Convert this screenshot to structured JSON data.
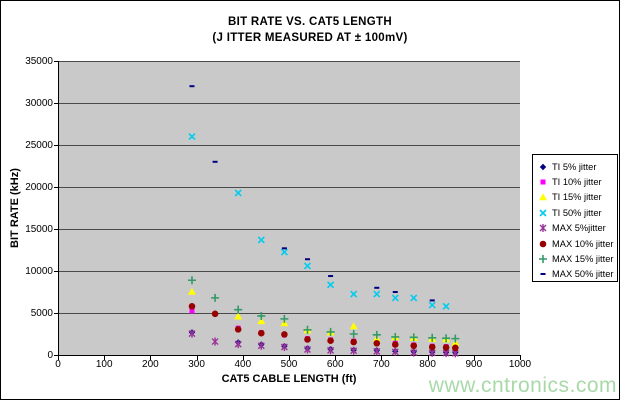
{
  "watermark": "www.cntronics.com",
  "chart_data": {
    "type": "scatter",
    "title": "BIT RATE VS. CAT5 LENGTH",
    "subtitle": "(J ITTER MEASURED AT ± 100mV)",
    "xlabel": "CAT5 CABLE LENGTH (ft)",
    "ylabel": "BIT RATE (kHz)",
    "xlim": [
      0,
      1000
    ],
    "ylim": [
      0,
      35000
    ],
    "x_ticks": [
      0,
      100,
      200,
      300,
      400,
      500,
      600,
      700,
      800,
      900,
      1000
    ],
    "y_ticks": [
      0,
      5000,
      10000,
      15000,
      20000,
      25000,
      30000,
      35000
    ],
    "grid": "horizontal",
    "legend_position": "right",
    "plot_bg": "#c9c9c9",
    "gridline_color": "#4a4a4a",
    "series": [
      {
        "name": "TI 5% jitter",
        "marker": "diamond",
        "color": "#000080",
        "points": [
          [
            290,
            2700
          ],
          [
            390,
            1500
          ],
          [
            440,
            1250
          ],
          [
            490,
            1050
          ],
          [
            540,
            800
          ],
          [
            590,
            700
          ],
          [
            640,
            600
          ],
          [
            690,
            550
          ],
          [
            730,
            450
          ],
          [
            770,
            400
          ],
          [
            810,
            350
          ],
          [
            840,
            320
          ],
          [
            860,
            300
          ]
        ]
      },
      {
        "name": "TI 10% jitter",
        "marker": "square",
        "color": "#ff00ff",
        "points": [
          [
            290,
            5250
          ],
          [
            390,
            3200
          ],
          [
            440,
            2650
          ],
          [
            490,
            2400
          ],
          [
            540,
            1950
          ],
          [
            590,
            1800
          ],
          [
            640,
            1650
          ],
          [
            690,
            1550
          ],
          [
            730,
            1400
          ],
          [
            770,
            1200
          ],
          [
            810,
            1050
          ],
          [
            840,
            1000
          ],
          [
            860,
            950
          ]
        ]
      },
      {
        "name": "TI 15% jitter",
        "marker": "triangle",
        "color": "#ffff00",
        "points": [
          [
            290,
            7550
          ],
          [
            390,
            4600
          ],
          [
            440,
            4050
          ],
          [
            490,
            3800
          ],
          [
            540,
            2950
          ],
          [
            590,
            2700
          ],
          [
            640,
            3450
          ],
          [
            690,
            1950
          ],
          [
            730,
            2100
          ],
          [
            770,
            2050
          ],
          [
            810,
            1950
          ],
          [
            840,
            1900
          ],
          [
            860,
            1450
          ]
        ]
      },
      {
        "name": "TI 50% jitter",
        "marker": "x",
        "color": "#00ccee",
        "points": [
          [
            290,
            26000
          ],
          [
            390,
            19300
          ],
          [
            440,
            13700
          ],
          [
            490,
            12250
          ],
          [
            540,
            10600
          ],
          [
            590,
            8350
          ],
          [
            640,
            7250
          ],
          [
            690,
            7250
          ],
          [
            730,
            6800
          ],
          [
            770,
            6800
          ],
          [
            810,
            5950
          ],
          [
            840,
            5800
          ]
        ]
      },
      {
        "name": "MAX 5%jitter",
        "marker": "star",
        "color": "#993399",
        "points": [
          [
            290,
            2550
          ],
          [
            340,
            1600
          ],
          [
            390,
            1300
          ],
          [
            440,
            1100
          ],
          [
            490,
            950
          ],
          [
            540,
            650
          ],
          [
            590,
            550
          ],
          [
            640,
            500
          ],
          [
            690,
            430
          ],
          [
            730,
            380
          ],
          [
            770,
            280
          ],
          [
            810,
            250
          ],
          [
            840,
            220
          ],
          [
            860,
            200
          ]
        ]
      },
      {
        "name": "MAX 10% jitter",
        "marker": "circle",
        "color": "#990000",
        "points": [
          [
            290,
            5800
          ],
          [
            340,
            4900
          ],
          [
            390,
            3050
          ],
          [
            440,
            2600
          ],
          [
            490,
            2450
          ],
          [
            540,
            1850
          ],
          [
            590,
            1700
          ],
          [
            640,
            1550
          ],
          [
            690,
            1400
          ],
          [
            730,
            1250
          ],
          [
            770,
            1100
          ],
          [
            810,
            950
          ],
          [
            840,
            900
          ],
          [
            860,
            850
          ]
        ]
      },
      {
        "name": "MAX 15% jitter",
        "marker": "plus",
        "color": "#339966",
        "points": [
          [
            290,
            8900
          ],
          [
            340,
            6800
          ],
          [
            390,
            5400
          ],
          [
            440,
            4650
          ],
          [
            490,
            4300
          ],
          [
            540,
            3000
          ],
          [
            590,
            2750
          ],
          [
            640,
            2500
          ],
          [
            690,
            2400
          ],
          [
            730,
            2150
          ],
          [
            770,
            2100
          ],
          [
            810,
            2050
          ],
          [
            840,
            2000
          ],
          [
            860,
            1950
          ]
        ]
      },
      {
        "name": "MAX 50% jitter",
        "marker": "dash",
        "color": "#000080",
        "points": [
          [
            290,
            32000
          ],
          [
            340,
            23000
          ],
          [
            490,
            12700
          ],
          [
            540,
            11400
          ],
          [
            590,
            9400
          ],
          [
            690,
            8000
          ],
          [
            730,
            7500
          ],
          [
            810,
            6500
          ]
        ]
      }
    ]
  }
}
